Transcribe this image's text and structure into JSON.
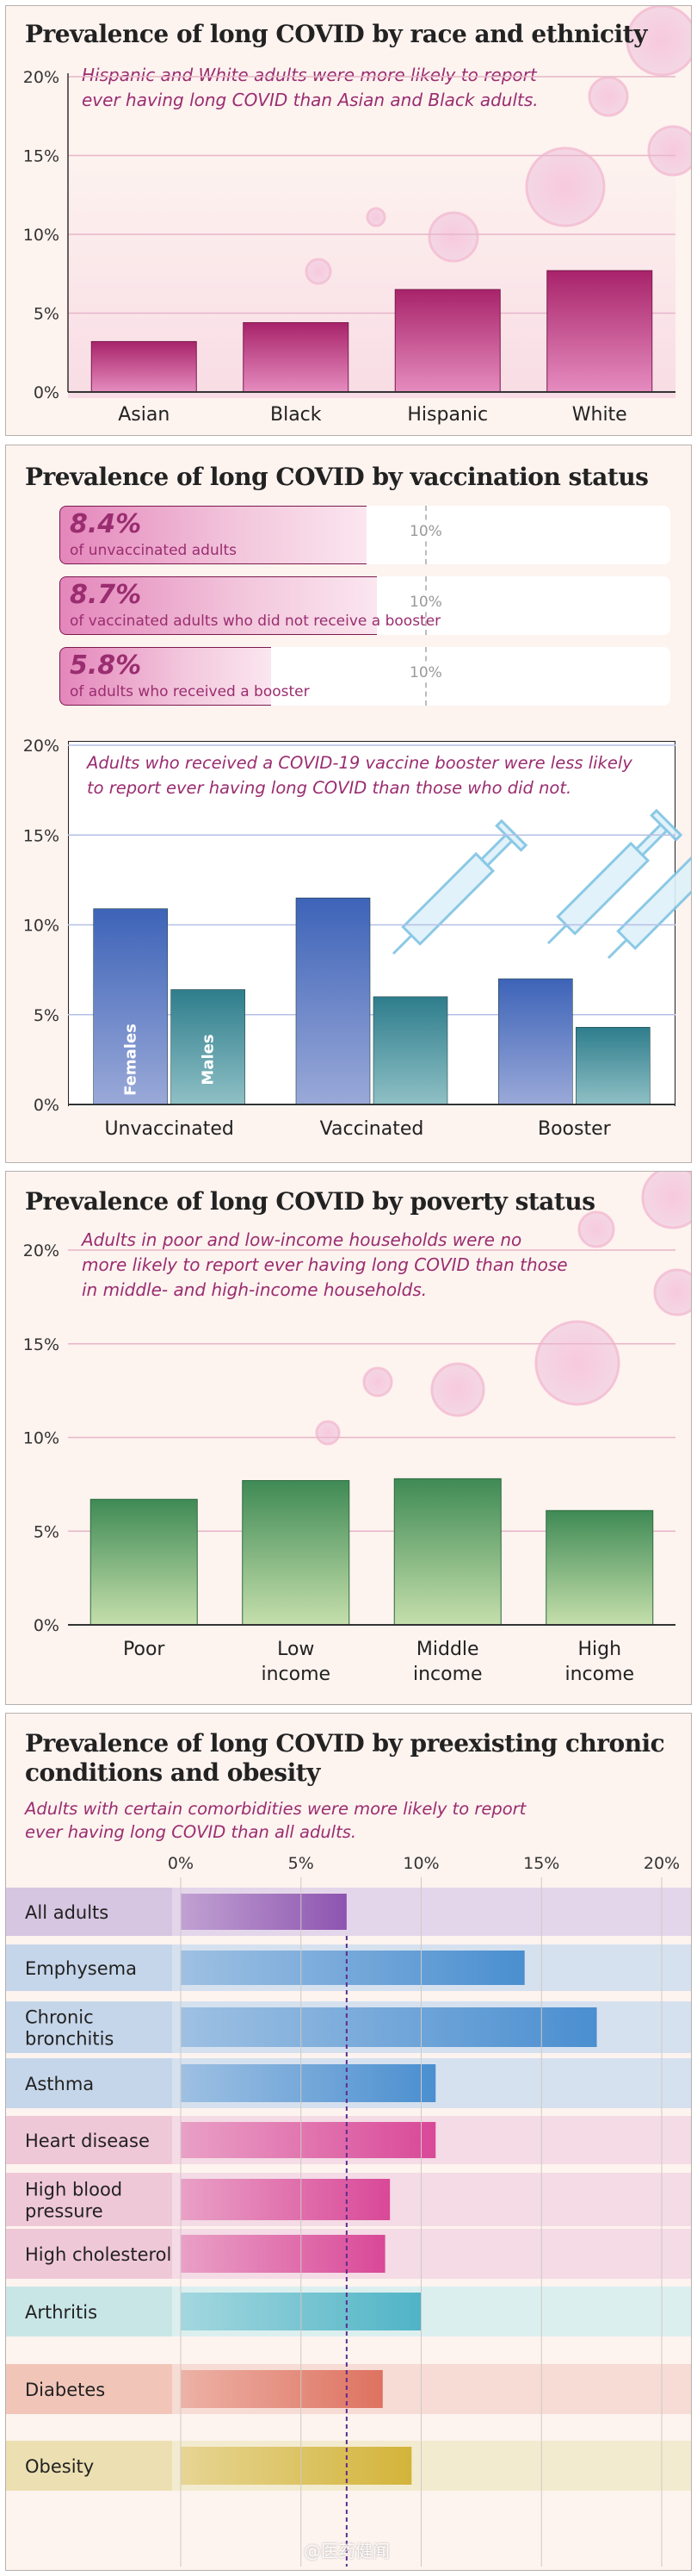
{
  "panel1": {
    "title": "Prevalence of long COVID by race and ethnicity",
    "subtitle_lines": [
      "Hispanic and White adults were more likely to report",
      "ever having long COVID than Asian and Black adults."
    ],
    "chart_data": {
      "type": "bar",
      "title": "Prevalence of long COVID by race and ethnicity",
      "categories": [
        "Asian",
        "Black",
        "Hispanic",
        "White"
      ],
      "values": [
        3.2,
        4.4,
        6.5,
        7.7
      ],
      "ylim": [
        0,
        20
      ],
      "yticks": [
        "0%",
        "5%",
        "10%",
        "15%",
        "20%"
      ],
      "grid": true,
      "colors": {
        "bar_top": "#a8236a",
        "bar_bottom": "#e58cbf"
      }
    }
  },
  "panel2": {
    "title": "Prevalence of long COVID by vaccination status",
    "progress_bars": [
      {
        "value_label": "8.4%",
        "value": 8.4,
        "caption": "of unvaccinated adults",
        "ref_label": "10%"
      },
      {
        "value_label": "8.7%",
        "value": 8.7,
        "caption": "of vaccinated adults who did not receive a booster",
        "ref_label": "10%"
      },
      {
        "value_label": "5.8%",
        "value": 5.8,
        "caption": "of adults who received a booster",
        "ref_label": "10%"
      }
    ],
    "subtitle_lines": [
      "Adults who received a COVID-19 vaccine booster were less likely",
      "to report ever having long COVID than those who did not."
    ],
    "chart_data": {
      "type": "bar",
      "categories": [
        "Unvaccinated",
        "Vaccinated",
        "Booster"
      ],
      "series": [
        {
          "name": "Females",
          "values": [
            10.9,
            11.5,
            7.0
          ],
          "color": "#3d63b8"
        },
        {
          "name": "Males",
          "values": [
            6.4,
            6.0,
            4.3
          ],
          "color": "#2e7d8c"
        }
      ],
      "ylim": [
        0,
        20
      ],
      "yticks": [
        "0%",
        "5%",
        "10%",
        "15%",
        "20%"
      ],
      "grid": true
    }
  },
  "panel3": {
    "title": "Prevalence of long COVID by poverty status",
    "subtitle_lines": [
      "Adults in poor and low-income households were no",
      "more likely to report ever having long COVID than those",
      "in middle- and high-income households."
    ],
    "chart_data": {
      "type": "bar",
      "categories": [
        [
          "Poor"
        ],
        [
          "Low",
          "income"
        ],
        [
          "Middle",
          "income"
        ],
        [
          "High",
          "income"
        ]
      ],
      "values": [
        6.7,
        7.7,
        7.8,
        6.1
      ],
      "ylim": [
        0,
        20
      ],
      "yticks": [
        "0%",
        "5%",
        "10%",
        "15%",
        "20%"
      ],
      "grid": true,
      "colors": {
        "bar_top": "#3f8a55",
        "bar_bottom": "#c5dfab"
      }
    }
  },
  "panel4": {
    "title_lines": [
      "Prevalence of long COVID by preexisting chronic",
      "conditions and obesity"
    ],
    "subtitle_lines": [
      "Adults with certain comorbidities were more likely to report",
      "ever having long COVID than all adults."
    ],
    "watermark": "@医药健闻",
    "chart_data": {
      "type": "bar",
      "orientation": "horizontal",
      "xlim": [
        0,
        20
      ],
      "xticks": [
        "0%",
        "5%",
        "10%",
        "15%",
        "20%"
      ],
      "reference_line": {
        "label": "All adults",
        "value": 6.9
      },
      "rows": [
        {
          "label": [
            "All adults"
          ],
          "value": 6.9,
          "group": "all"
        },
        {
          "label": [
            "Emphysema"
          ],
          "value": 14.3,
          "group": "lung"
        },
        {
          "label": [
            "Chronic",
            "bronchitis"
          ],
          "value": 17.3,
          "group": "lung"
        },
        {
          "label": [
            "Asthma"
          ],
          "value": 10.6,
          "group": "lung"
        },
        {
          "label": [
            "Heart disease"
          ],
          "value": 10.6,
          "group": "heart"
        },
        {
          "label": [
            "High blood",
            "pressure"
          ],
          "value": 8.7,
          "group": "heart"
        },
        {
          "label": [
            "High cholesterol"
          ],
          "value": 8.5,
          "group": "heart"
        },
        {
          "label": [
            "Arthritis"
          ],
          "value": 10.0,
          "group": "arthritis"
        },
        {
          "label": [
            "Diabetes"
          ],
          "value": 8.4,
          "group": "diabetes"
        },
        {
          "label": [
            "Obesity"
          ],
          "value": 9.6,
          "group": "obesity"
        }
      ],
      "group_colors": {
        "all": "#8d54b0",
        "lung": "#4a8fd0",
        "heart": "#d94898",
        "arthritis": "#4fb4c6",
        "diabetes": "#de7260",
        "obesity": "#d3b43a"
      }
    }
  }
}
